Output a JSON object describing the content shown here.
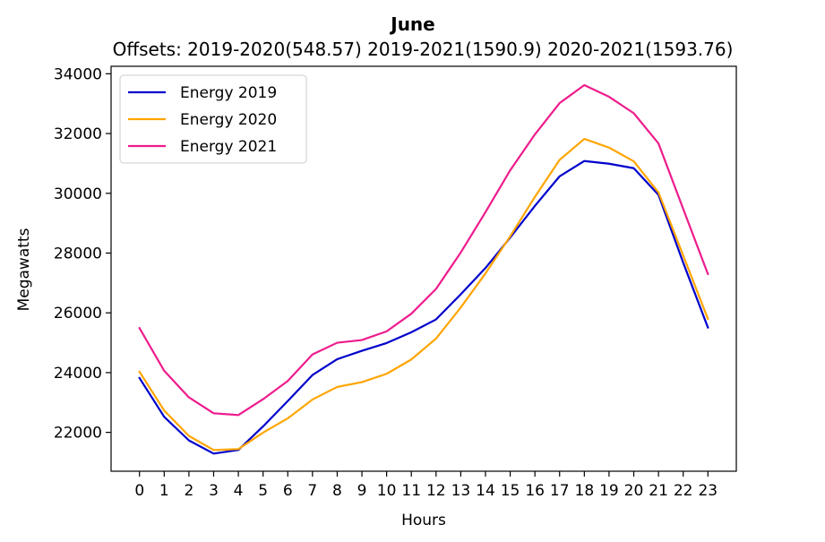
{
  "chart_data": {
    "type": "line",
    "title": "June",
    "subtitle": "Offsets: 2019-2020(548.57) 2019-2021(1590.9) 2020-2021(1593.76)",
    "xlabel": "Hours",
    "ylabel": "Megawatts",
    "x": [
      0,
      1,
      2,
      3,
      4,
      5,
      6,
      7,
      8,
      9,
      10,
      11,
      12,
      13,
      14,
      15,
      16,
      17,
      18,
      19,
      20,
      21,
      22,
      23
    ],
    "x_tick_labels": [
      "0",
      "1",
      "2",
      "3",
      "4",
      "5",
      "6",
      "7",
      "8",
      "9",
      "10",
      "11",
      "12",
      "13",
      "14",
      "15",
      "16",
      "17",
      "18",
      "19",
      "20",
      "21",
      "22",
      "23"
    ],
    "y_ticks": [
      22000,
      24000,
      26000,
      28000,
      30000,
      32000,
      34000
    ],
    "y_tick_labels": [
      "22000",
      "24000",
      "26000",
      "28000",
      "30000",
      "32000",
      "34000"
    ],
    "xlim": [
      -1.15,
      24.15
    ],
    "ylim": [
      20700,
      34250
    ],
    "legend_position": "top-left",
    "grid": false,
    "series": [
      {
        "name": "Energy 2019",
        "color": "#0000cc",
        "values": [
          23820,
          22520,
          21730,
          21290,
          21410,
          22200,
          23050,
          23920,
          24450,
          24730,
          24990,
          25350,
          25780,
          26620,
          27500,
          28520,
          29580,
          30570,
          31080,
          30990,
          30840,
          29950,
          27680,
          25510
        ]
      },
      {
        "name": "Energy 2020",
        "color": "#ffa500",
        "values": [
          24030,
          22730,
          21880,
          21410,
          21440,
          21990,
          22470,
          23100,
          23520,
          23680,
          23960,
          24440,
          25140,
          26180,
          27320,
          28560,
          29880,
          31120,
          31820,
          31530,
          31070,
          30030,
          27920,
          25800
        ]
      },
      {
        "name": "Energy 2021",
        "color": "#ee1c8c",
        "values": [
          25490,
          24060,
          23170,
          22640,
          22580,
          23110,
          23720,
          24610,
          25000,
          25090,
          25380,
          25970,
          26800,
          28020,
          29370,
          30770,
          31970,
          33020,
          33620,
          33230,
          32680,
          31670,
          29480,
          27300
        ]
      }
    ]
  }
}
